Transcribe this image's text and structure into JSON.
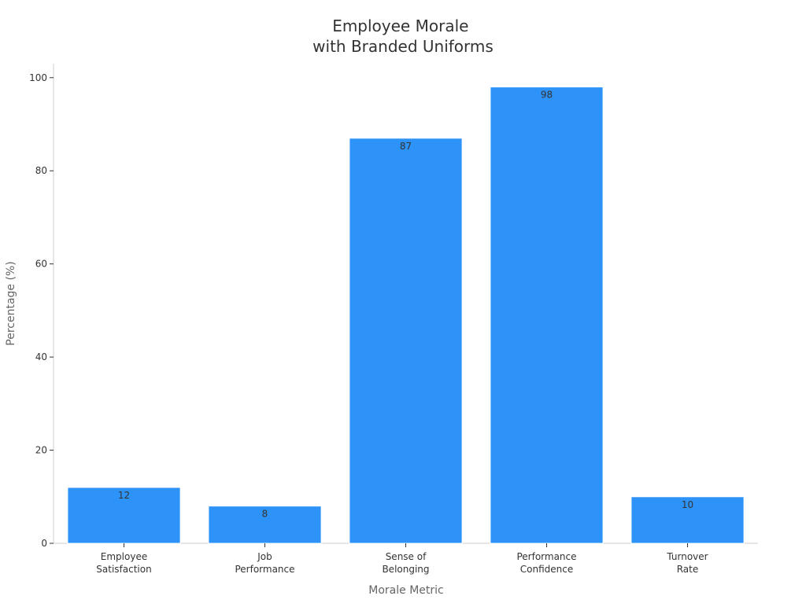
{
  "chart_data": {
    "type": "bar",
    "title": [
      "Employee Morale",
      "with Branded Uniforms"
    ],
    "xlabel": "Morale Metric",
    "ylabel": "Percentage (%)",
    "categories": [
      [
        "Employee",
        "Satisfaction"
      ],
      [
        "Job",
        "Performance"
      ],
      [
        "Sense of",
        "Belonging"
      ],
      [
        "Performance",
        "Confidence"
      ],
      [
        "Turnover",
        "Rate"
      ]
    ],
    "values": [
      12,
      8,
      87,
      98,
      10
    ],
    "data_labels": [
      "12",
      "8",
      "87",
      "98",
      "10"
    ],
    "ylim": [
      0,
      103
    ],
    "yticks": [
      0,
      20,
      40,
      60,
      80,
      100
    ],
    "grid": false,
    "bar_color": "#2e93f8",
    "text_color": "#333333",
    "axis_label_color": "#666666",
    "axis_color": "#cccccc"
  }
}
